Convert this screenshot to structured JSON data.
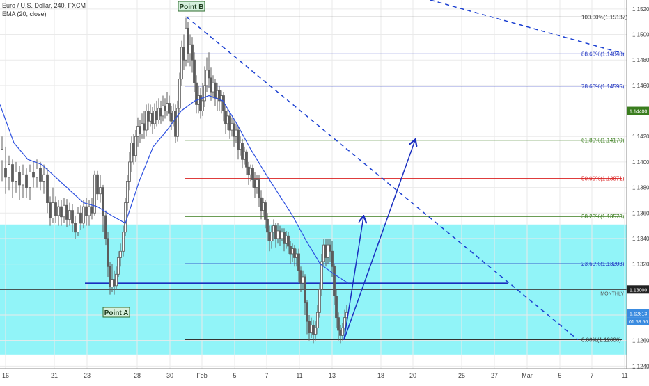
{
  "header": {
    "symbol": "Euro / U.S. Dollar, 240, FXCM",
    "indicator": "EMA (20, close)"
  },
  "chart_data": {
    "type": "candlestick",
    "xlabel": "",
    "ylabel": "",
    "ylim": [
      1.1238,
      1.1527
    ],
    "grid": true,
    "y_ticks": [
      "1.15200",
      "1.15000",
      "1.14800",
      "1.14600",
      "1.14400",
      "1.14200",
      "1.14000",
      "1.13800",
      "1.13600",
      "1.13400",
      "1.13200",
      "1.13000",
      "1.12800",
      "1.12600",
      "1.12400"
    ],
    "x_ticks": [
      "16",
      "21",
      "23",
      "28",
      "30",
      "Feb",
      "5",
      "7",
      "11",
      "13",
      "18",
      "20",
      "25",
      "27",
      "Mar",
      "5",
      "7",
      "11"
    ],
    "price_labels": {
      "h_line": "1.14400",
      "monthly": "1.13000",
      "last": "1.12813",
      "countdown": "01:58:56"
    },
    "fibonacci": [
      {
        "label": "100.00%(1.15137)",
        "value": 1.15137,
        "color": "#333333"
      },
      {
        "label": "88.60%(1.14848)",
        "value": 1.14848,
        "color": "#1a2fc0"
      },
      {
        "label": "78.60%(1.14595)",
        "value": 1.14595,
        "color": "#1a2fc0"
      },
      {
        "label": "61.80%(1.14170)",
        "value": 1.1417,
        "color": "#3a7d1e"
      },
      {
        "label": "50.00%(1.13871)",
        "value": 1.13871,
        "color": "#d92121"
      },
      {
        "label": "38.20%(1.13573)",
        "value": 1.13573,
        "color": "#3a7d1e"
      },
      {
        "label": "23.60%(1.13203)",
        "value": 1.13203,
        "color": "#1a2fc0"
      },
      {
        "label": "0.00%(1.12606)",
        "value": 1.12606,
        "color": "#333333"
      }
    ],
    "annotations": {
      "point_a": "Point A",
      "point_b": "Point B",
      "monthly_label": "MONTHLY"
    },
    "zone": {
      "from": 1.1249,
      "to": 1.1351,
      "color": "#7ef2f7"
    },
    "support_line": {
      "value": 1.13047,
      "from": "Jan 22",
      "to": "Feb 23"
    },
    "monthly_line": {
      "value": 1.13
    },
    "h_line": {
      "value": 1.144
    },
    "colors": {
      "candle": "#5c5c5c",
      "ema": "#2b4fe0",
      "arrow": "#1a2fc0",
      "trend": "#1a3fd1"
    }
  }
}
